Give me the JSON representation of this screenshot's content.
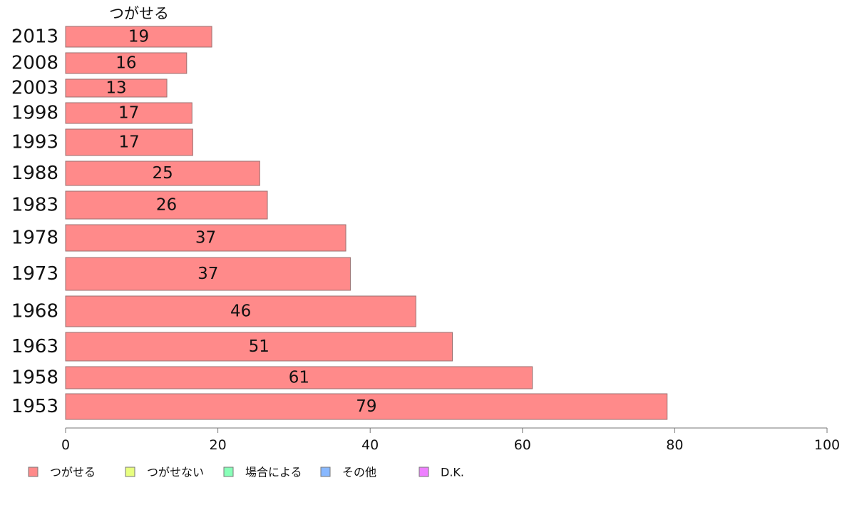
{
  "chart_data": {
    "type": "bar",
    "orientation": "horizontal",
    "series_label": "つがせる",
    "categories": [
      "2013",
      "2008",
      "2003",
      "1998",
      "1993",
      "1988",
      "1983",
      "1978",
      "1973",
      "1968",
      "1963",
      "1958",
      "1953"
    ],
    "series": [
      {
        "name": "つがせる",
        "color": "#ff8a8a",
        "values": [
          19,
          16,
          13,
          17,
          17,
          25,
          26,
          37,
          37,
          46,
          51,
          61,
          79
        ],
        "exact_values": [
          19.2,
          15.9,
          13.3,
          16.6,
          16.7,
          25.5,
          26.5,
          36.8,
          37.4,
          46.0,
          50.8,
          61.3,
          79.0
        ]
      }
    ],
    "xlim": [
      0,
      100
    ],
    "xticks": [
      0,
      20,
      40,
      60,
      80,
      100
    ],
    "grid": false,
    "legend_position": "bottom-left",
    "legend": [
      {
        "label": "つがせる",
        "color": "#ff8a8a"
      },
      {
        "label": "つがせない",
        "color": "#e8ff80"
      },
      {
        "label": "場合による",
        "color": "#88ffb8"
      },
      {
        "label": "その他",
        "color": "#88b8ff"
      },
      {
        "label": "D.K.",
        "color": "#ee80ff"
      }
    ]
  }
}
